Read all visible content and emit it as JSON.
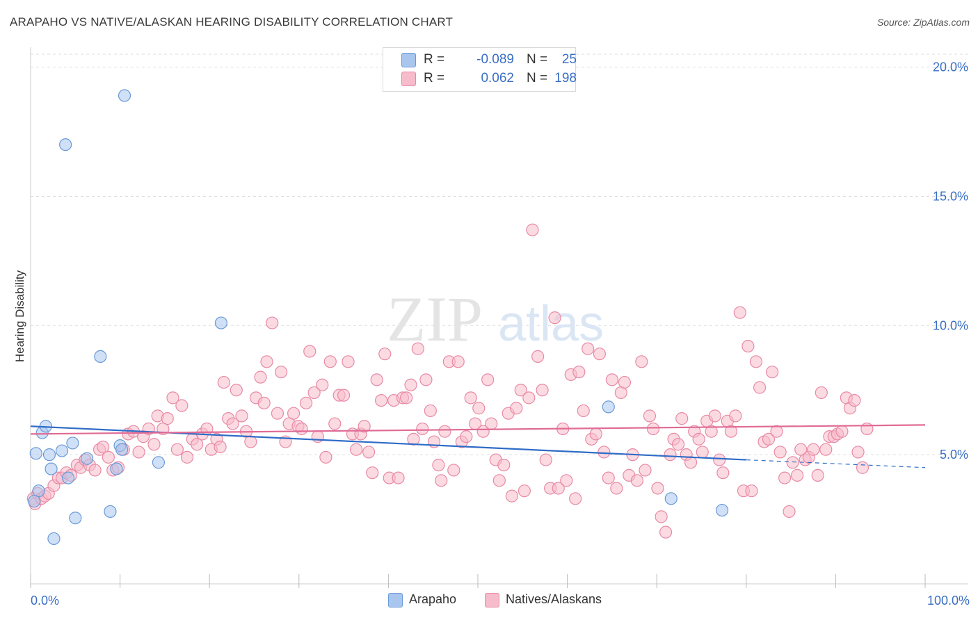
{
  "title": "ARAPAHO VS NATIVE/ALASKAN HEARING DISABILITY CORRELATION CHART",
  "source": "Source: ZipAtlas.com",
  "watermark": {
    "zip": "ZIP",
    "atlas": "atlas"
  },
  "legend": {
    "rows": [
      {
        "r_label": "R =",
        "r_value": "-0.089",
        "n_label": "N =",
        "n_value": "25",
        "color": "#a9c6ef",
        "border": "#6a9ad8"
      },
      {
        "r_label": "R =",
        "r_value": "0.062",
        "n_label": "N =",
        "n_value": "198",
        "color": "#f7bccb",
        "border": "#e88aa5"
      }
    ]
  },
  "bottom_legend": [
    {
      "label": "Arapaho",
      "color": "#a9c6ef",
      "border": "#6a9ad8"
    },
    {
      "label": "Natives/Alaskans",
      "color": "#f7bccb",
      "border": "#e88aa5"
    }
  ],
  "chart_data": {
    "type": "scatter",
    "title": "ARAPAHO VS NATIVE/ALASKAN HEARING DISABILITY CORRELATION CHART",
    "xlabel": "",
    "ylabel": "Hearing Disability",
    "xlim": [
      0,
      100
    ],
    "ylim": [
      0,
      20.5
    ],
    "x_tick_labels": [
      "0.0%",
      "100.0%"
    ],
    "y_ticks": [
      5,
      10,
      15,
      20
    ],
    "y_tick_labels": [
      "5.0%",
      "10.0%",
      "15.0%",
      "20.0%"
    ],
    "series": [
      {
        "name": "Arapaho",
        "color": "#a9c6ef",
        "stroke": "#6a9ad8",
        "trend_color": "#2f6cc7",
        "trend": {
          "x0": 0,
          "y0": 6.1,
          "x1": 80,
          "y1": 4.8,
          "dash_to_x": 100,
          "dash_to_y": 4.5
        },
        "points": [
          [
            0.6,
            5.05
          ],
          [
            0.9,
            3.6
          ],
          [
            1.3,
            5.85
          ],
          [
            1.7,
            6.1
          ],
          [
            2.1,
            5.0
          ],
          [
            2.3,
            4.45
          ],
          [
            2.6,
            1.75
          ],
          [
            3.5,
            5.15
          ],
          [
            4.2,
            4.1
          ],
          [
            4.7,
            5.45
          ],
          [
            5.0,
            2.55
          ],
          [
            6.3,
            4.85
          ],
          [
            7.8,
            8.8
          ],
          [
            8.9,
            2.8
          ],
          [
            9.6,
            4.45
          ],
          [
            10.0,
            5.35
          ],
          [
            10.2,
            5.2
          ],
          [
            10.5,
            18.9
          ],
          [
            14.3,
            4.7
          ],
          [
            3.9,
            17.0
          ],
          [
            21.3,
            10.1
          ],
          [
            64.6,
            6.85
          ],
          [
            71.6,
            3.3
          ],
          [
            77.3,
            2.85
          ],
          [
            0.4,
            3.2
          ]
        ]
      },
      {
        "name": "Natives/Alaskans",
        "color": "#f7bccb",
        "stroke": "#e88aa5",
        "trend_color": "#e06b95",
        "trend": {
          "x0": 0,
          "y0": 5.8,
          "x1": 100,
          "y1": 6.15
        },
        "points": [
          [
            0.3,
            3.3
          ],
          [
            0.5,
            3.1
          ],
          [
            0.8,
            3.5
          ],
          [
            1.2,
            3.3
          ],
          [
            1.6,
            3.4
          ],
          [
            2.0,
            3.5
          ],
          [
            2.6,
            3.8
          ],
          [
            3.1,
            4.1
          ],
          [
            3.5,
            4.1
          ],
          [
            4.0,
            4.3
          ],
          [
            4.5,
            4.2
          ],
          [
            5.2,
            4.6
          ],
          [
            5.6,
            4.5
          ],
          [
            6.1,
            4.8
          ],
          [
            6.6,
            4.6
          ],
          [
            7.2,
            4.4
          ],
          [
            7.7,
            5.2
          ],
          [
            8.1,
            5.3
          ],
          [
            8.7,
            4.9
          ],
          [
            9.2,
            4.4
          ],
          [
            9.8,
            4.5
          ],
          [
            10.4,
            5.2
          ],
          [
            10.9,
            5.8
          ],
          [
            11.5,
            5.9
          ],
          [
            12.1,
            5.1
          ],
          [
            12.6,
            5.7
          ],
          [
            13.2,
            6.0
          ],
          [
            13.8,
            5.4
          ],
          [
            14.2,
            6.5
          ],
          [
            14.8,
            6.0
          ],
          [
            15.3,
            6.4
          ],
          [
            15.9,
            7.2
          ],
          [
            16.4,
            5.2
          ],
          [
            16.9,
            6.9
          ],
          [
            17.5,
            4.9
          ],
          [
            18.1,
            5.6
          ],
          [
            18.6,
            5.4
          ],
          [
            19.2,
            5.8
          ],
          [
            19.7,
            6.0
          ],
          [
            20.2,
            5.2
          ],
          [
            20.8,
            5.6
          ],
          [
            21.2,
            5.3
          ],
          [
            21.6,
            7.8
          ],
          [
            22.1,
            6.4
          ],
          [
            22.6,
            6.2
          ],
          [
            23.0,
            7.5
          ],
          [
            23.6,
            6.5
          ],
          [
            24.1,
            5.9
          ],
          [
            24.6,
            5.5
          ],
          [
            25.2,
            7.2
          ],
          [
            25.7,
            8.0
          ],
          [
            26.1,
            7.0
          ],
          [
            26.4,
            8.6
          ],
          [
            27.0,
            10.1
          ],
          [
            27.6,
            6.6
          ],
          [
            28.0,
            8.2
          ],
          [
            28.5,
            5.5
          ],
          [
            28.9,
            6.2
          ],
          [
            29.4,
            6.6
          ],
          [
            29.9,
            6.1
          ],
          [
            30.3,
            6.0
          ],
          [
            30.8,
            7.0
          ],
          [
            31.2,
            9.0
          ],
          [
            31.7,
            7.4
          ],
          [
            32.1,
            5.7
          ],
          [
            32.6,
            7.7
          ],
          [
            33.0,
            4.9
          ],
          [
            33.5,
            8.6
          ],
          [
            34.0,
            6.2
          ],
          [
            34.5,
            7.3
          ],
          [
            35.0,
            7.3
          ],
          [
            35.5,
            8.6
          ],
          [
            36.0,
            5.8
          ],
          [
            36.4,
            5.2
          ],
          [
            36.9,
            5.8
          ],
          [
            37.3,
            6.1
          ],
          [
            37.8,
            5.1
          ],
          [
            38.2,
            4.3
          ],
          [
            38.7,
            7.9
          ],
          [
            39.2,
            7.1
          ],
          [
            39.6,
            8.9
          ],
          [
            40.1,
            4.1
          ],
          [
            40.6,
            7.1
          ],
          [
            41.1,
            4.1
          ],
          [
            41.6,
            7.2
          ],
          [
            42.0,
            7.2
          ],
          [
            42.5,
            7.7
          ],
          [
            42.8,
            5.6
          ],
          [
            43.3,
            9.1
          ],
          [
            43.8,
            6.0
          ],
          [
            44.2,
            7.9
          ],
          [
            44.7,
            6.7
          ],
          [
            45.1,
            5.5
          ],
          [
            45.6,
            4.6
          ],
          [
            45.9,
            4.0
          ],
          [
            46.3,
            5.9
          ],
          [
            46.8,
            8.6
          ],
          [
            47.3,
            4.4
          ],
          [
            47.8,
            8.6
          ],
          [
            48.2,
            5.5
          ],
          [
            48.7,
            5.7
          ],
          [
            49.2,
            7.2
          ],
          [
            49.7,
            6.2
          ],
          [
            50.1,
            6.8
          ],
          [
            50.6,
            5.9
          ],
          [
            51.1,
            7.9
          ],
          [
            51.5,
            6.2
          ],
          [
            52.0,
            4.8
          ],
          [
            52.4,
            4.0
          ],
          [
            52.9,
            4.6
          ],
          [
            53.4,
            6.6
          ],
          [
            53.8,
            3.4
          ],
          [
            54.3,
            6.8
          ],
          [
            54.8,
            7.5
          ],
          [
            55.2,
            3.6
          ],
          [
            55.7,
            7.2
          ],
          [
            56.1,
            13.7
          ],
          [
            56.7,
            8.8
          ],
          [
            57.2,
            7.5
          ],
          [
            57.6,
            4.8
          ],
          [
            58.1,
            3.7
          ],
          [
            58.6,
            10.3
          ],
          [
            59.0,
            3.7
          ],
          [
            59.5,
            6.0
          ],
          [
            59.9,
            4.0
          ],
          [
            60.4,
            8.1
          ],
          [
            60.9,
            3.3
          ],
          [
            61.3,
            8.2
          ],
          [
            61.8,
            6.7
          ],
          [
            62.3,
            9.1
          ],
          [
            62.7,
            5.6
          ],
          [
            63.2,
            5.8
          ],
          [
            63.6,
            8.9
          ],
          [
            64.1,
            5.1
          ],
          [
            64.6,
            4.1
          ],
          [
            65.0,
            7.9
          ],
          [
            65.5,
            3.7
          ],
          [
            66.0,
            7.4
          ],
          [
            66.4,
            7.8
          ],
          [
            66.9,
            4.2
          ],
          [
            67.3,
            5.0
          ],
          [
            67.8,
            4.0
          ],
          [
            68.3,
            8.6
          ],
          [
            68.7,
            4.4
          ],
          [
            69.2,
            6.5
          ],
          [
            69.6,
            6.0
          ],
          [
            70.1,
            3.7
          ],
          [
            70.5,
            2.6
          ],
          [
            71.0,
            2.0
          ],
          [
            71.5,
            5.0
          ],
          [
            71.9,
            5.6
          ],
          [
            72.4,
            5.4
          ],
          [
            72.8,
            6.4
          ],
          [
            73.3,
            5.0
          ],
          [
            73.8,
            4.7
          ],
          [
            74.2,
            5.9
          ],
          [
            74.7,
            5.6
          ],
          [
            75.1,
            5.1
          ],
          [
            75.6,
            6.3
          ],
          [
            76.1,
            5.9
          ],
          [
            76.5,
            6.5
          ],
          [
            77.0,
            4.8
          ],
          [
            77.4,
            4.3
          ],
          [
            77.9,
            6.3
          ],
          [
            78.3,
            5.9
          ],
          [
            78.8,
            6.5
          ],
          [
            79.3,
            10.5
          ],
          [
            79.7,
            3.6
          ],
          [
            80.2,
            9.2
          ],
          [
            80.6,
            3.6
          ],
          [
            81.1,
            8.6
          ],
          [
            81.5,
            7.6
          ],
          [
            82.0,
            5.5
          ],
          [
            82.5,
            5.6
          ],
          [
            82.9,
            8.2
          ],
          [
            83.4,
            5.9
          ],
          [
            83.8,
            5.1
          ],
          [
            84.3,
            4.1
          ],
          [
            84.8,
            2.8
          ],
          [
            85.2,
            4.7
          ],
          [
            85.7,
            4.2
          ],
          [
            86.1,
            5.2
          ],
          [
            86.6,
            4.8
          ],
          [
            87.0,
            4.9
          ],
          [
            87.5,
            5.2
          ],
          [
            88.0,
            4.2
          ],
          [
            88.4,
            7.4
          ],
          [
            88.9,
            5.2
          ],
          [
            89.3,
            5.7
          ],
          [
            89.8,
            5.7
          ],
          [
            90.2,
            5.8
          ],
          [
            90.7,
            5.9
          ],
          [
            91.2,
            7.2
          ],
          [
            91.6,
            6.8
          ],
          [
            92.1,
            7.1
          ],
          [
            92.5,
            5.1
          ],
          [
            93.0,
            4.5
          ],
          [
            93.5,
            6.0
          ]
        ]
      }
    ]
  }
}
